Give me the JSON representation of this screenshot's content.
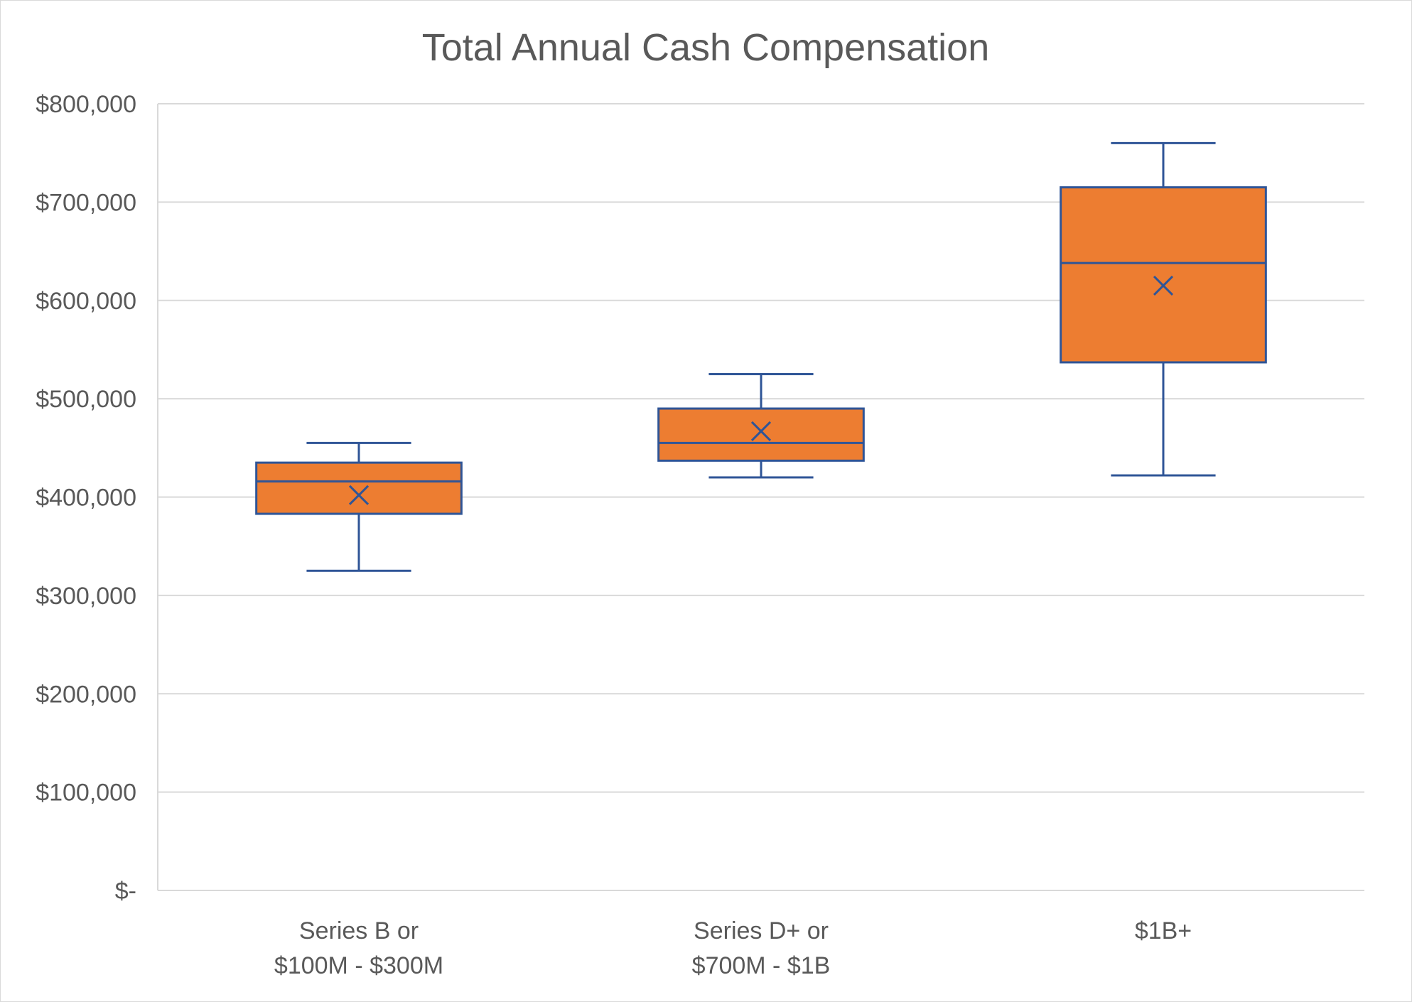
{
  "chart_data": {
    "type": "box",
    "title": "Total Annual Cash Compensation",
    "categories": [
      [
        "Series B or",
        "$100M - $300M"
      ],
      [
        "Series D+ or",
        "$700M - $1B"
      ],
      [
        "$1B+"
      ]
    ],
    "y_ticks": [
      {
        "value": 0,
        "label": "$-"
      },
      {
        "value": 100000,
        "label": "$100,000"
      },
      {
        "value": 200000,
        "label": "$200,000"
      },
      {
        "value": 300000,
        "label": "$300,000"
      },
      {
        "value": 400000,
        "label": "$400,000"
      },
      {
        "value": 500000,
        "label": "$500,000"
      },
      {
        "value": 600000,
        "label": "$600,000"
      },
      {
        "value": 700000,
        "label": "$700,000"
      },
      {
        "value": 800000,
        "label": "$800,000"
      }
    ],
    "ylim": [
      0,
      800000
    ],
    "grid": true,
    "boxes": [
      {
        "min": 325000,
        "q1": 383000,
        "median": 416000,
        "q3": 435000,
        "max": 455000,
        "mean": 402000
      },
      {
        "min": 420000,
        "q1": 437000,
        "median": 455000,
        "q3": 490000,
        "max": 525000,
        "mean": 467000
      },
      {
        "min": 422000,
        "q1": 537000,
        "median": 638000,
        "q3": 715000,
        "max": 760000,
        "mean": 615000
      }
    ],
    "colors": {
      "box_fill": "#ED7D31",
      "box_stroke": "#2F5597",
      "grid": "#d9d9d9",
      "text": "#595959"
    }
  }
}
